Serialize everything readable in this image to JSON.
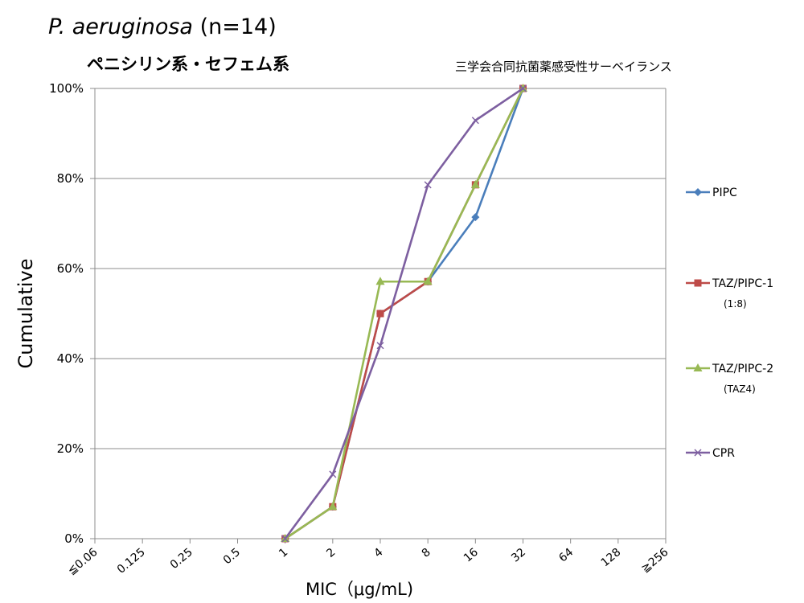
{
  "header": {
    "species": "P. aeruginosa",
    "count": " (n=14)",
    "subtitle": "ペニシリン系・セフェム系",
    "source": "三学会合同抗菌薬感受性サーベイランス"
  },
  "chart_data": {
    "type": "line",
    "xlabel": "MIC（μg/mL)",
    "ylabel": "Cumulative",
    "categories": [
      "≦0.06",
      "0.125",
      "0.25",
      "0.5",
      "1",
      "2",
      "4",
      "8",
      "16",
      "32",
      "64",
      "128",
      "≧256"
    ],
    "ylim": [
      0,
      100
    ],
    "yticks": [
      0,
      20,
      40,
      60,
      80,
      100
    ],
    "ytick_labels": [
      "0%",
      "20%",
      "40%",
      "60%",
      "80%",
      "100%"
    ],
    "grid": true,
    "legend_position": "right",
    "series": [
      {
        "name": "PIPC",
        "sub": "",
        "color": "#4a7ebb",
        "marker": "diamond",
        "values": [
          null,
          null,
          null,
          null,
          0,
          7.1,
          50,
          57.1,
          71.4,
          100,
          null,
          null,
          null
        ]
      },
      {
        "name": "TAZ/PIPC-1",
        "sub": "(1:8)",
        "color": "#be4b48",
        "marker": "square",
        "values": [
          null,
          null,
          null,
          null,
          0,
          7.1,
          50,
          57.1,
          78.6,
          100,
          null,
          null,
          null
        ]
      },
      {
        "name": "TAZ/PIPC-2",
        "sub": "(TAZ4)",
        "color": "#98b954",
        "marker": "triangle",
        "values": [
          null,
          null,
          null,
          null,
          0,
          7.1,
          57.1,
          57.1,
          78.6,
          100,
          null,
          null,
          null
        ]
      },
      {
        "name": "CPR",
        "sub": "",
        "color": "#7d5fa0",
        "marker": "x",
        "values": [
          null,
          null,
          null,
          null,
          0,
          14.3,
          42.9,
          78.6,
          92.9,
          100,
          null,
          null,
          null
        ]
      }
    ]
  }
}
